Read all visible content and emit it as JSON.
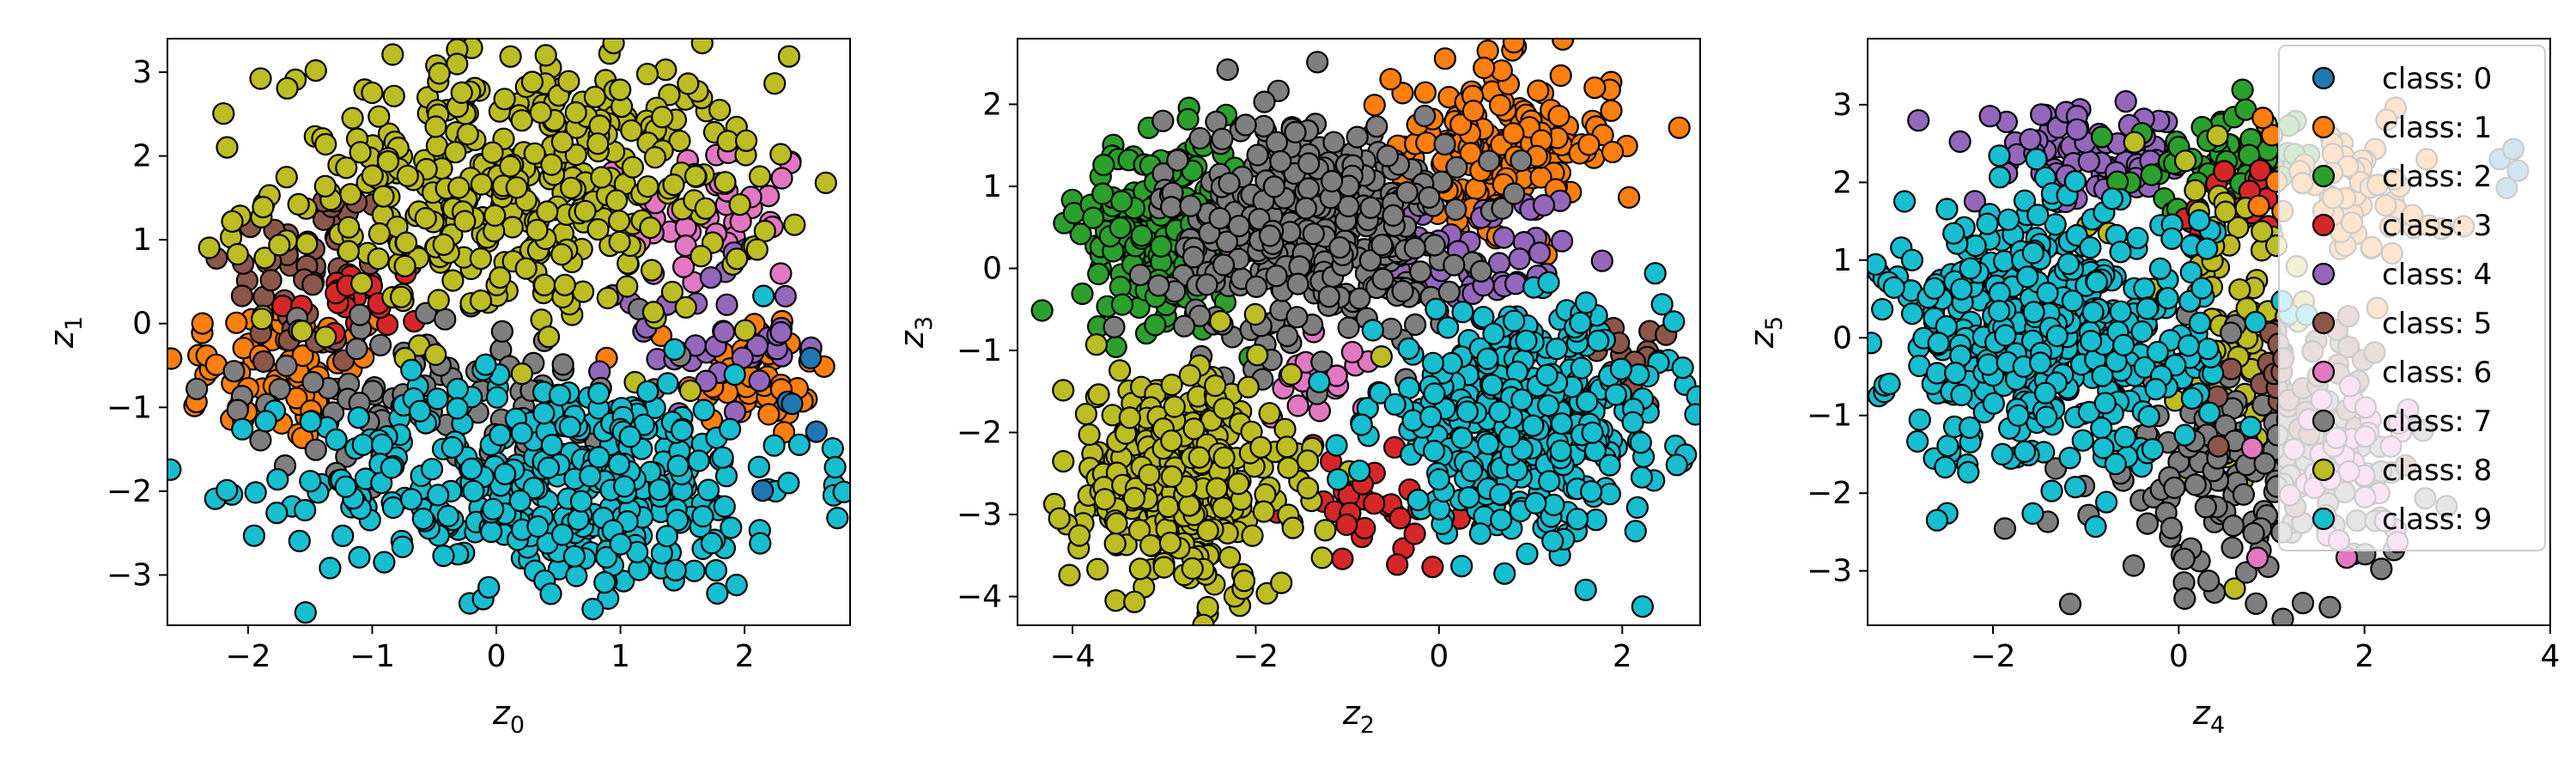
{
  "colors": {
    "class: 0": "#1f77b4",
    "class: 1": "#ff7f0e",
    "class: 2": "#2ca02c",
    "class: 3": "#d62728",
    "class: 4": "#9467bd",
    "class: 5": "#8c564b",
    "class: 6": "#e377c2",
    "class: 7": "#7f7f7f",
    "class: 8": "#bcbd22",
    "class: 9": "#17becf"
  },
  "legend": {
    "placement": "upper-right of third panel",
    "entries": [
      "class: 0",
      "class: 1",
      "class: 2",
      "class: 3",
      "class: 4",
      "class: 5",
      "class: 6",
      "class: 7",
      "class: 8",
      "class: 9"
    ]
  },
  "chart_data": [
    {
      "type": "scatter",
      "xlim": [
        -2.65,
        2.85
      ],
      "ylim": [
        -3.6,
        3.4
      ],
      "xticks": [
        -2,
        -1,
        0,
        1,
        2
      ],
      "xtick_labels": [
        "−2",
        "−1",
        "0",
        "1",
        "2"
      ],
      "yticks": [
        -3,
        -2,
        -1,
        0,
        1,
        2,
        3
      ],
      "ytick_labels": [
        "−3",
        "−2",
        "−1",
        "0",
        "1",
        "2",
        "3"
      ],
      "xlabel_base": "z",
      "xlabel_sub": "0",
      "ylabel_base": "z",
      "ylabel_sub": "1",
      "grid": false,
      "clusters": [
        {
          "name": "class: 1",
          "cx": -1.7,
          "cy": -0.6,
          "sx": 0.5,
          "sy": 0.45,
          "n": 70
        },
        {
          "name": "class: 1",
          "cx": 2.1,
          "cy": -0.6,
          "sx": 0.3,
          "sy": 0.4,
          "n": 45
        },
        {
          "name": "class: 5",
          "cx": -1.5,
          "cy": 0.6,
          "sx": 0.35,
          "sy": 0.6,
          "n": 55
        },
        {
          "name": "class: 6",
          "cx": 1.8,
          "cy": 1.3,
          "sx": 0.35,
          "sy": 0.5,
          "n": 45
        },
        {
          "name": "class: 4",
          "cx": 1.7,
          "cy": -0.2,
          "sx": 0.35,
          "sy": 0.45,
          "n": 40
        },
        {
          "name": "class: 3",
          "cx": -1.2,
          "cy": 0.3,
          "sx": 0.3,
          "sy": 0.3,
          "n": 20
        },
        {
          "name": "class: 7",
          "cx": -0.4,
          "cy": -0.8,
          "sx": 0.8,
          "sy": 0.5,
          "n": 90
        },
        {
          "name": "class: 8",
          "cx": 0.2,
          "cy": 1.6,
          "sx": 1.0,
          "sy": 0.8,
          "n": 420
        },
        {
          "name": "class: 9",
          "cx": 0.5,
          "cy": -1.9,
          "sx": 1.0,
          "sy": 0.65,
          "n": 420
        },
        {
          "name": "class: 0",
          "cx": 2.4,
          "cy": -1.0,
          "sx": 0.3,
          "sy": 0.5,
          "n": 5
        }
      ]
    },
    {
      "type": "scatter",
      "xlim": [
        -4.6,
        2.85
      ],
      "ylim": [
        -4.35,
        2.8
      ],
      "xticks": [
        -4,
        -2,
        0,
        2
      ],
      "xtick_labels": [
        "−4",
        "−2",
        "0",
        "2"
      ],
      "yticks": [
        -4,
        -3,
        -2,
        -1,
        0,
        1,
        2
      ],
      "ytick_labels": [
        "−4",
        "−3",
        "−2",
        "−1",
        "0",
        "1",
        "2"
      ],
      "xlabel_base": "z",
      "xlabel_sub": "2",
      "ylabel_base": "z",
      "ylabel_sub": "3",
      "grid": false,
      "clusters": [
        {
          "name": "class: 1",
          "cx": 0.7,
          "cy": 1.5,
          "sx": 0.6,
          "sy": 0.5,
          "n": 170
        },
        {
          "name": "class: 2",
          "cx": -3.0,
          "cy": 0.5,
          "sx": 0.45,
          "sy": 0.55,
          "n": 230
        },
        {
          "name": "class: 4",
          "cx": 0.5,
          "cy": 0.1,
          "sx": 0.5,
          "sy": 0.4,
          "n": 50
        },
        {
          "name": "class: 5",
          "cx": 1.9,
          "cy": -1.1,
          "sx": 0.3,
          "sy": 0.3,
          "n": 20
        },
        {
          "name": "class: 6",
          "cx": -1.3,
          "cy": -1.3,
          "sx": 0.3,
          "sy": 0.3,
          "n": 20
        },
        {
          "name": "class: 3",
          "cx": -0.8,
          "cy": -2.9,
          "sx": 0.5,
          "sy": 0.3,
          "n": 35
        },
        {
          "name": "class: 7",
          "cx": -1.4,
          "cy": 0.5,
          "sx": 0.8,
          "sy": 0.7,
          "n": 420
        },
        {
          "name": "class: 8",
          "cx": -2.8,
          "cy": -2.6,
          "sx": 0.6,
          "sy": 0.7,
          "n": 330
        },
        {
          "name": "class: 9",
          "cx": 0.9,
          "cy": -1.9,
          "sx": 0.8,
          "sy": 0.65,
          "n": 420
        }
      ]
    },
    {
      "type": "scatter",
      "xlim": [
        -3.35,
        4.0
      ],
      "ylim": [
        -3.7,
        3.85
      ],
      "xticks": [
        -2,
        0,
        2,
        4
      ],
      "xtick_labels": [
        "−2",
        "0",
        "2",
        "4"
      ],
      "yticks": [
        -3,
        -2,
        -1,
        0,
        1,
        2,
        3
      ],
      "ytick_labels": [
        "−3",
        "−2",
        "−1",
        "0",
        "1",
        "2",
        "3"
      ],
      "xlabel_base": "z",
      "xlabel_sub": "4",
      "ylabel_base": "z",
      "ylabel_sub": "5",
      "grid": false,
      "clusters": [
        {
          "name": "class: 4",
          "cx": -1.0,
          "cy": 2.3,
          "sx": 0.6,
          "sy": 0.3,
          "n": 80
        },
        {
          "name": "class: 2",
          "cx": 0.5,
          "cy": 2.3,
          "sx": 0.5,
          "sy": 0.3,
          "n": 60
        },
        {
          "name": "class: 3",
          "cx": 0.6,
          "cy": 1.6,
          "sx": 0.3,
          "sy": 0.3,
          "n": 20
        },
        {
          "name": "class: 8",
          "cx": 0.5,
          "cy": 0.2,
          "sx": 0.5,
          "sy": 1.0,
          "n": 90
        },
        {
          "name": "class: 7",
          "cx": 0.8,
          "cy": -1.8,
          "sx": 0.8,
          "sy": 0.7,
          "n": 180
        },
        {
          "name": "class: 5",
          "cx": 1.4,
          "cy": -0.6,
          "sx": 0.4,
          "sy": 0.5,
          "n": 40
        },
        {
          "name": "class: 6",
          "cx": 1.8,
          "cy": -1.6,
          "sx": 0.4,
          "sy": 0.5,
          "n": 40
        },
        {
          "name": "class: 1",
          "cx": 1.8,
          "cy": 2.0,
          "sx": 0.5,
          "sy": 0.5,
          "n": 60
        },
        {
          "name": "class: 9",
          "cx": -1.4,
          "cy": 0.0,
          "sx": 0.85,
          "sy": 0.85,
          "n": 480
        },
        {
          "name": "class: 0",
          "cx": 3.5,
          "cy": 2.1,
          "sx": 0.25,
          "sy": 0.25,
          "n": 4
        }
      ]
    }
  ]
}
